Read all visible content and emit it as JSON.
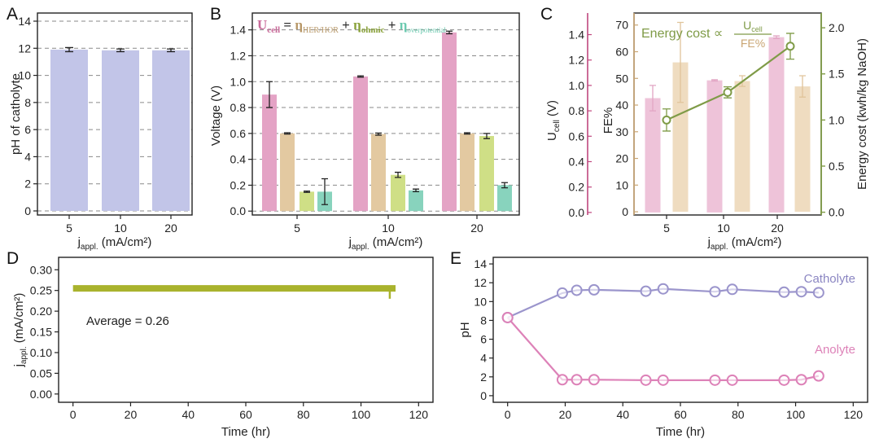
{
  "panel_labels": [
    "A",
    "B",
    "C",
    "D",
    "E"
  ],
  "colors": {
    "lavender": "#c2c5e8",
    "pink": "#e4a3c5",
    "tan": "#e3c9a1",
    "lime": "#cfdf86",
    "teal": "#88d3bd",
    "olive": "#7f9b47",
    "d_line": "#a9b32d",
    "purple_line": "#9b95cc",
    "pink_line": "#dd82b8",
    "c_fe_pink": "#eec3d9",
    "c_fe_tan": "#efdcc0"
  },
  "chart_data": [
    {
      "panel": "A",
      "type": "bar",
      "categories": [
        "5",
        "10",
        "20"
      ],
      "values": [
        11.9,
        11.85,
        11.85
      ],
      "errors": [
        0.15,
        0.1,
        0.1
      ],
      "ylabel": "pH of catholyte",
      "xlabel_main": "j",
      "xlabel_sub": "appl.",
      "xlabel_unit": " (mA/cm²)",
      "ylim": [
        0,
        14
      ],
      "yticks": [
        "0",
        "2",
        "4",
        "6",
        "8",
        "10",
        "12",
        "14"
      ],
      "grid": true
    },
    {
      "panel": "B",
      "type": "bar",
      "categories": [
        "5",
        "10",
        "20"
      ],
      "series": [
        {
          "name": "U_cell",
          "values": [
            0.9,
            1.04,
            1.38
          ],
          "errors": [
            0.1,
            0.005,
            0.01
          ]
        },
        {
          "name": "η_HER/HOR",
          "values": [
            0.6,
            0.595,
            0.6
          ],
          "errors": [
            0.005,
            0.008,
            0.005
          ]
        },
        {
          "name": "η_ohmic",
          "values": [
            0.15,
            0.28,
            0.58
          ],
          "errors": [
            0.005,
            0.02,
            0.02
          ]
        },
        {
          "name": "η_overpotential",
          "values": [
            0.15,
            0.16,
            0.2
          ],
          "errors": [
            0.1,
            0.01,
            0.02
          ]
        }
      ],
      "ylabel": "Voltage (V)",
      "xlabel_main": "j",
      "xlabel_sub": "appl.",
      "xlabel_unit": " (mA/cm²)",
      "ylim": [
        0,
        1.5
      ],
      "yticks": [
        "0.0",
        "0.2",
        "0.4",
        "0.6",
        "0.8",
        "1.0",
        "1.2",
        "1.4"
      ],
      "legend": {
        "u": "U",
        "u_sub": "cell",
        "eq": " = ",
        "n1": "η",
        "n1_sub": "HER/HOR",
        "plus1": " + ",
        "n2": "η",
        "n2_sub": "ohmic",
        "plus2": " + ",
        "n3": "η",
        "n3_sub": "overpotential"
      },
      "grid": true
    },
    {
      "panel": "C",
      "type": "bar",
      "categories": [
        "5",
        "10",
        "20"
      ],
      "series": [
        {
          "name": "U_cell",
          "values": [
            0.9,
            1.04,
            1.38
          ],
          "errors": [
            0.1,
            0.005,
            0.01
          ]
        },
        {
          "name": "FE%",
          "values": [
            56,
            49,
            47
          ],
          "errors": [
            15,
            2,
            4
          ]
        }
      ],
      "line_series": {
        "name": "Energy cost",
        "values": [
          1.0,
          1.3,
          1.8
        ],
        "errors": [
          0.12,
          0.06,
          0.14
        ]
      },
      "ylabel_u_main": "U",
      "ylabel_u_sub": "cell",
      "ylabel_u_unit": " (V)",
      "ylabel_fe": "FE%",
      "ylabel_right": "Energy cost (kwh/kg NaOH)",
      "xlabel_main": "j",
      "xlabel_sub": "appl.",
      "xlabel_unit": " (mA/cm²)",
      "ylim_fe": [
        0,
        70
      ],
      "yticks_fe": [
        "0",
        "10",
        "20",
        "30",
        "40",
        "50",
        "60",
        "70"
      ],
      "ylim_u": [
        0,
        1.5
      ],
      "yticks_u": [
        "0.0",
        "0.2",
        "0.4",
        "0.6",
        "0.8",
        "1.0",
        "1.2",
        "1.4"
      ],
      "ylim_right": [
        0,
        2.0
      ],
      "yticks_right": [
        "0.0",
        "0.5",
        "1.0",
        "1.5",
        "2.0"
      ],
      "annotation": {
        "text": "Energy cost ∝",
        "num_main": "U",
        "num_sub": "cell",
        "den": "FE%"
      }
    },
    {
      "panel": "D",
      "type": "line",
      "x_start": 0,
      "x_end": 112,
      "y_value": 0.255,
      "dip_x": 110,
      "dip_y": 0.23,
      "annotation": "Average = 0.26",
      "xlabel": "Time (hr)",
      "ylabel_main": "j",
      "ylabel_sub": "appl.",
      "ylabel_unit": " (mA/cm²)",
      "xlim": [
        -5,
        125
      ],
      "xticks": [
        "0",
        "20",
        "40",
        "60",
        "80",
        "100",
        "120"
      ],
      "ylim": [
        -0.02,
        0.33
      ],
      "yticks": [
        "0.00",
        "0.05",
        "0.10",
        "0.15",
        "0.20",
        "0.25",
        "0.30"
      ]
    },
    {
      "panel": "E",
      "type": "line",
      "series": [
        {
          "name": "Catholyte",
          "x": [
            0,
            19,
            24,
            30,
            48,
            54,
            72,
            78,
            96,
            102,
            108
          ],
          "y": [
            8.3,
            10.9,
            11.2,
            11.25,
            11.1,
            11.35,
            11.05,
            11.3,
            11.0,
            11.05,
            10.95
          ]
        },
        {
          "name": "Anolyte",
          "x": [
            0,
            19,
            24,
            30,
            48,
            54,
            72,
            78,
            96,
            102,
            108
          ],
          "y": [
            8.3,
            1.7,
            1.7,
            1.7,
            1.65,
            1.65,
            1.65,
            1.65,
            1.65,
            1.7,
            2.1
          ]
        }
      ],
      "xlabel": "Time (hr)",
      "ylabel": "pH",
      "xlim": [
        -5,
        125
      ],
      "xticks": [
        "0",
        "20",
        "40",
        "60",
        "80",
        "100",
        "120"
      ],
      "ylim": [
        -0.7,
        14.7
      ],
      "yticks": [
        "0",
        "2",
        "4",
        "6",
        "8",
        "10",
        "12",
        "14"
      ]
    }
  ]
}
